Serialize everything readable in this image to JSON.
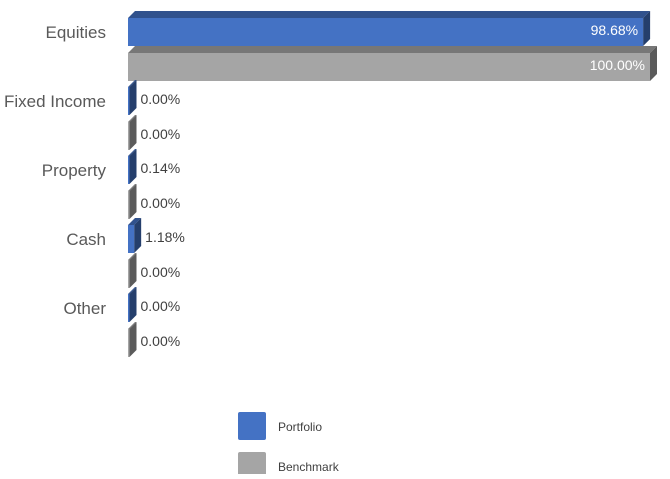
{
  "chart_data": {
    "type": "bar",
    "orientation": "horizontal",
    "title": "",
    "xlabel": "",
    "ylabel": "",
    "xlim": [
      0,
      100
    ],
    "grid": false,
    "legend": "bottom",
    "categories": [
      "Equities",
      "Fixed Income",
      "Property",
      "Cash",
      "Other"
    ],
    "series": [
      {
        "name": "Portfolio",
        "color": "#4472C4",
        "values": [
          98.68,
          0.0,
          0.14,
          1.18,
          0.0
        ],
        "labels": [
          "98.68%",
          "0.00%",
          "0.14%",
          "1.18%",
          "0.00%"
        ]
      },
      {
        "name": "Benchmark",
        "color": "#A5A5A5",
        "values": [
          100.0,
          0.0,
          0.0,
          0.0,
          0.0
        ],
        "labels": [
          "100.00%",
          "0.00%",
          "0.00%",
          "0.00%",
          "0.00%"
        ]
      }
    ]
  }
}
